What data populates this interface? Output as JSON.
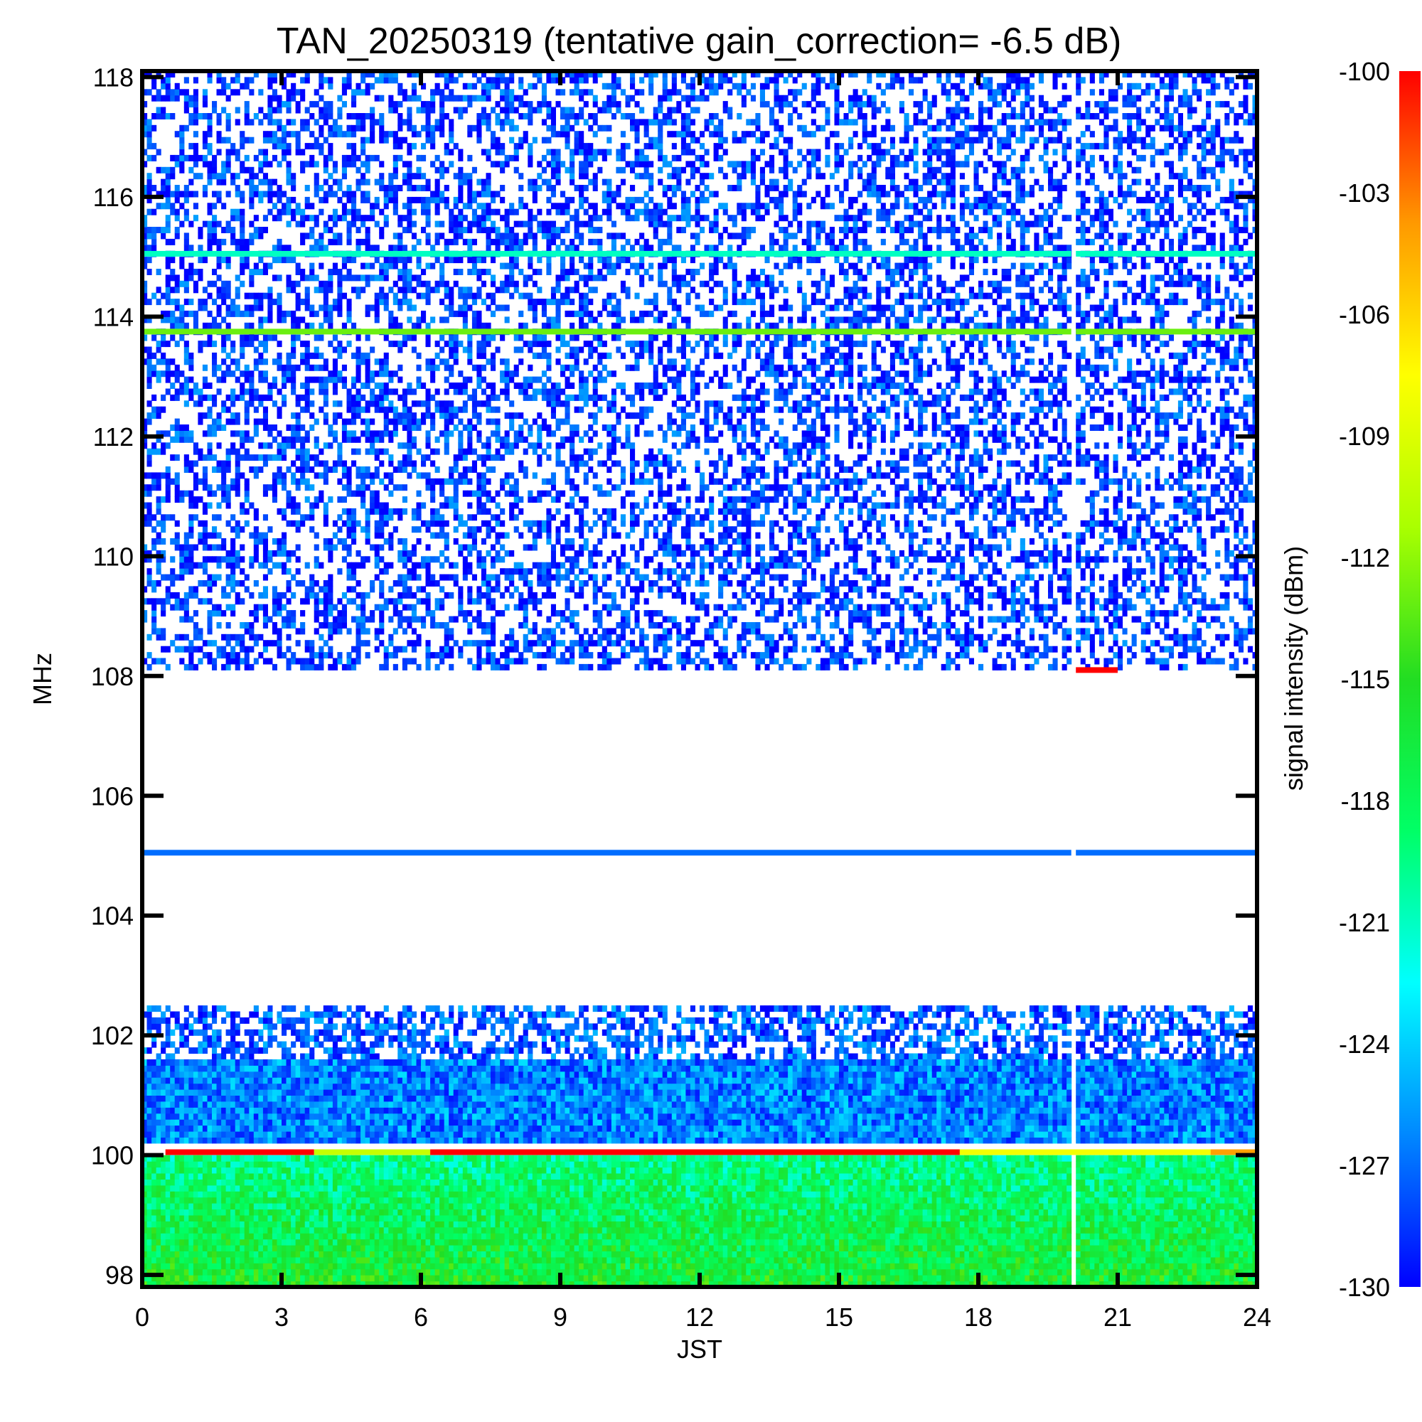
{
  "chart_data": {
    "type": "heatmap",
    "title": "TAN_20250319 (tentative gain_correction= -6.5 dB)",
    "xlabel": "JST",
    "ylabel": "MHz",
    "colorbar_label": "signal intensity (dBm)",
    "xlim": [
      0,
      24
    ],
    "ylim": [
      97.8,
      118.1
    ],
    "clim": [
      -130,
      -100
    ],
    "x_ticks": [
      0,
      3,
      6,
      9,
      12,
      15,
      18,
      21,
      24
    ],
    "x_tick_labels": [
      "0",
      "3",
      "6",
      "9",
      "12",
      "15",
      "18",
      "21",
      "24"
    ],
    "y_ticks": [
      98,
      100,
      102,
      104,
      106,
      108,
      110,
      112,
      114,
      116,
      118
    ],
    "y_tick_labels": [
      "98",
      "100",
      "102",
      "104",
      "106",
      "108",
      "110",
      "112",
      "114",
      "116",
      "118"
    ],
    "colorbar_ticks": [
      -100,
      -103,
      -106,
      -109,
      -112,
      -115,
      -118,
      -121,
      -124,
      -127,
      -130
    ],
    "colorbar_tick_labels": [
      "-100",
      "-103",
      "-106",
      "-109",
      "-112",
      "-115",
      "-118",
      "-121",
      "-124",
      "-127",
      "-130"
    ],
    "colormap": [
      "#0000ff",
      "#0088ff",
      "#00ffff",
      "#00ff66",
      "#22dd22",
      "#aaff00",
      "#ffff00",
      "#ff9900",
      "#ff0000"
    ],
    "data_gap": {
      "x_start": 20.0,
      "x_end": 20.1
    },
    "persistent_signals": [
      {
        "freq": 115.05,
        "level": -121
      },
      {
        "freq": 113.75,
        "level": -113
      },
      {
        "freq": 105.05,
        "level": -127
      },
      {
        "freq": 100.05,
        "level": -100,
        "segments": [
          [
            0.5,
            3.7,
            -100
          ],
          [
            3.7,
            6.2,
            -110
          ],
          [
            6.2,
            17.6,
            -100
          ],
          [
            17.6,
            23.0,
            -108
          ],
          [
            23.0,
            24.0,
            -104
          ]
        ]
      },
      {
        "freq": 108.1,
        "level": -100,
        "segments": [
          [
            20.1,
            21.0,
            -100
          ]
        ]
      }
    ],
    "regions": [
      {
        "f_min": 108.1,
        "f_max": 118.1,
        "description_level": -129,
        "density": 0.45
      },
      {
        "f_min": 101.6,
        "f_max": 102.5,
        "description_level": -128,
        "density": 0.55
      },
      {
        "f_min": 100.2,
        "f_max": 101.6,
        "description_level": -127,
        "density": 1.0
      },
      {
        "f_min": 97.8,
        "f_max": 100.0,
        "description_level": -120,
        "density": 1.0
      }
    ]
  }
}
